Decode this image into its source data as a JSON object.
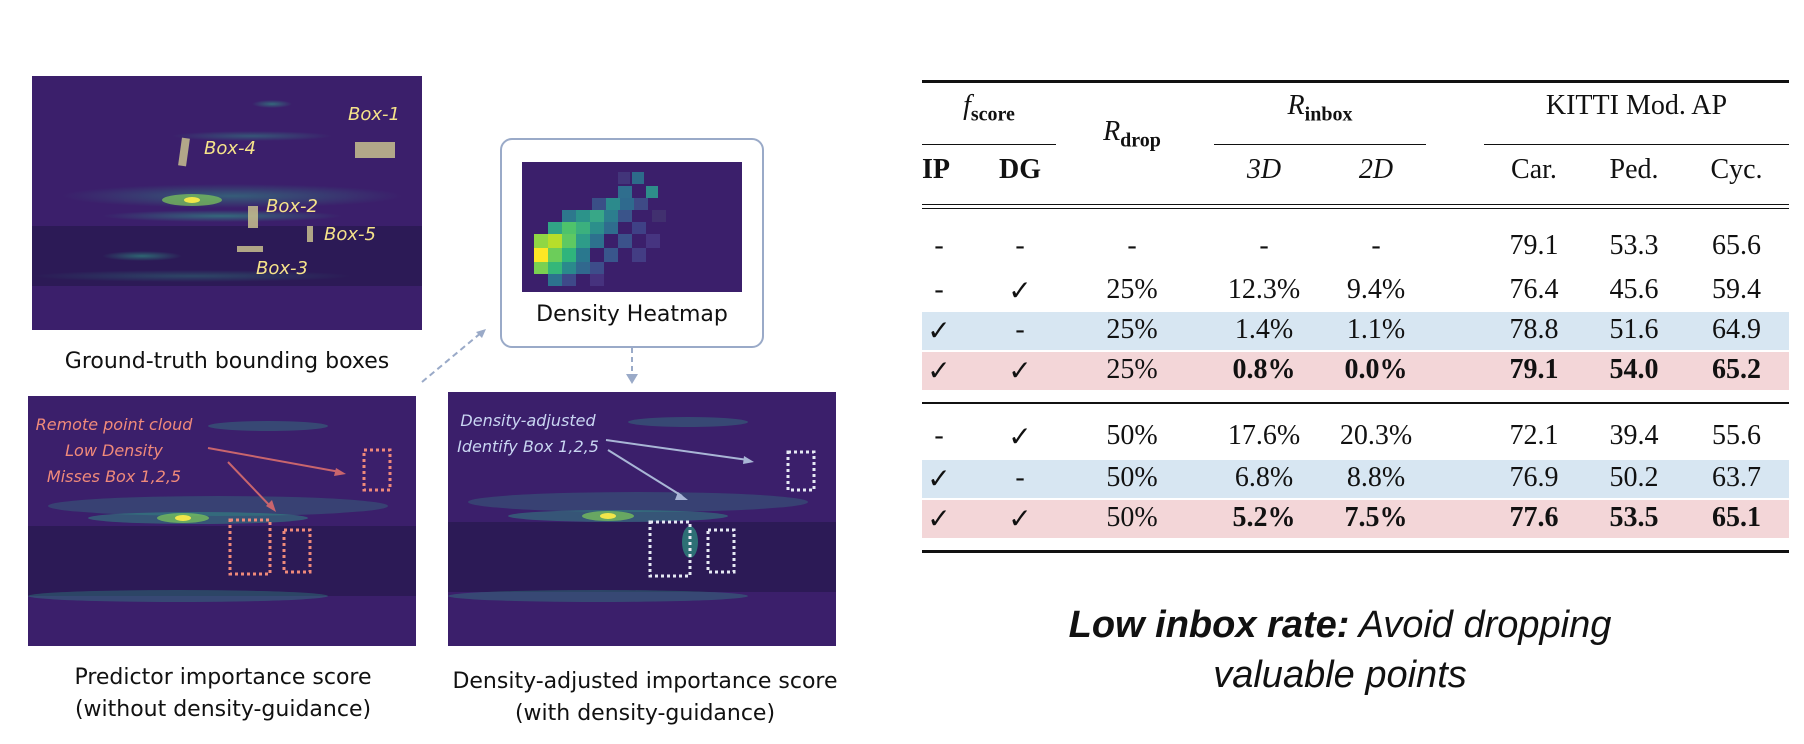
{
  "left": {
    "gt_caption": "Ground-truth bounding boxes",
    "gt_boxes": [
      "Box-1",
      "Box-4",
      "Box-2",
      "Box-5",
      "Box-3"
    ],
    "heatmap_caption": "Density Heatmap",
    "pred_caption_line1": "Predictor importance score",
    "pred_caption_line2": "(without density-guidance)",
    "pred_note": [
      "Remote point cloud",
      "Low Density",
      "Misses Box 1,2,5"
    ],
    "adj_caption_line1": "Density-adjusted importance score",
    "adj_caption_line2": "(with density-guidance)",
    "adj_note": [
      "Density-adjusted",
      "Identify Box 1,2,5"
    ],
    "colors": {
      "viz_bg": "#3b1f6b",
      "gt_label": "#f6e38a",
      "pred_note": "#f08a7a",
      "adj_note": "#c9d6f2",
      "arrow": "#9aaac8"
    }
  },
  "table": {
    "header": {
      "fscore": "f",
      "fscore_sub": "score",
      "rdrop": "R",
      "rdrop_sub": "drop",
      "rinbox": "R",
      "rinbox_sub": "inbox",
      "kitti": "KITTI Mod. AP",
      "sub": [
        "IP",
        "DG",
        "3D",
        "2D",
        "Car.",
        "Ped.",
        "Cyc."
      ]
    },
    "rows": [
      {
        "ip": "-",
        "dg": "-",
        "rdrop": "-",
        "in3d": "-",
        "in2d": "-",
        "car": "79.1",
        "ped": "53.3",
        "cyc": "65.6",
        "highlight": "none",
        "bold": false
      },
      {
        "ip": "-",
        "dg": "✓",
        "rdrop": "25%",
        "in3d": "12.3%",
        "in2d": "9.4%",
        "car": "76.4",
        "ped": "45.6",
        "cyc": "59.4",
        "highlight": "none",
        "bold": false
      },
      {
        "ip": "✓",
        "dg": "-",
        "rdrop": "25%",
        "in3d": "1.4%",
        "in2d": "1.1%",
        "car": "78.8",
        "ped": "51.6",
        "cyc": "64.9",
        "highlight": "blue",
        "bold": false
      },
      {
        "ip": "✓",
        "dg": "✓",
        "rdrop": "25%",
        "in3d": "0.8%",
        "in2d": "0.0%",
        "car": "79.1",
        "ped": "54.0",
        "cyc": "65.2",
        "highlight": "pink",
        "bold": true
      },
      {
        "ip": "-",
        "dg": "✓",
        "rdrop": "50%",
        "in3d": "17.6%",
        "in2d": "20.3%",
        "car": "72.1",
        "ped": "39.4",
        "cyc": "55.6",
        "highlight": "none",
        "bold": false
      },
      {
        "ip": "✓",
        "dg": "-",
        "rdrop": "50%",
        "in3d": "6.8%",
        "in2d": "8.8%",
        "car": "76.9",
        "ped": "50.2",
        "cyc": "63.7",
        "highlight": "blue",
        "bold": false
      },
      {
        "ip": "✓",
        "dg": "✓",
        "rdrop": "50%",
        "in3d": "5.2%",
        "in2d": "7.5%",
        "car": "77.6",
        "ped": "53.5",
        "cyc": "65.1",
        "highlight": "pink",
        "bold": true
      }
    ],
    "colors": {
      "blue": "#d7e6f2",
      "pink": "#f3d6d8"
    }
  },
  "takeaway": {
    "bold": "Low inbox rate:",
    "rest_line1": "Avoid dropping",
    "rest_line2": "valuable points"
  }
}
